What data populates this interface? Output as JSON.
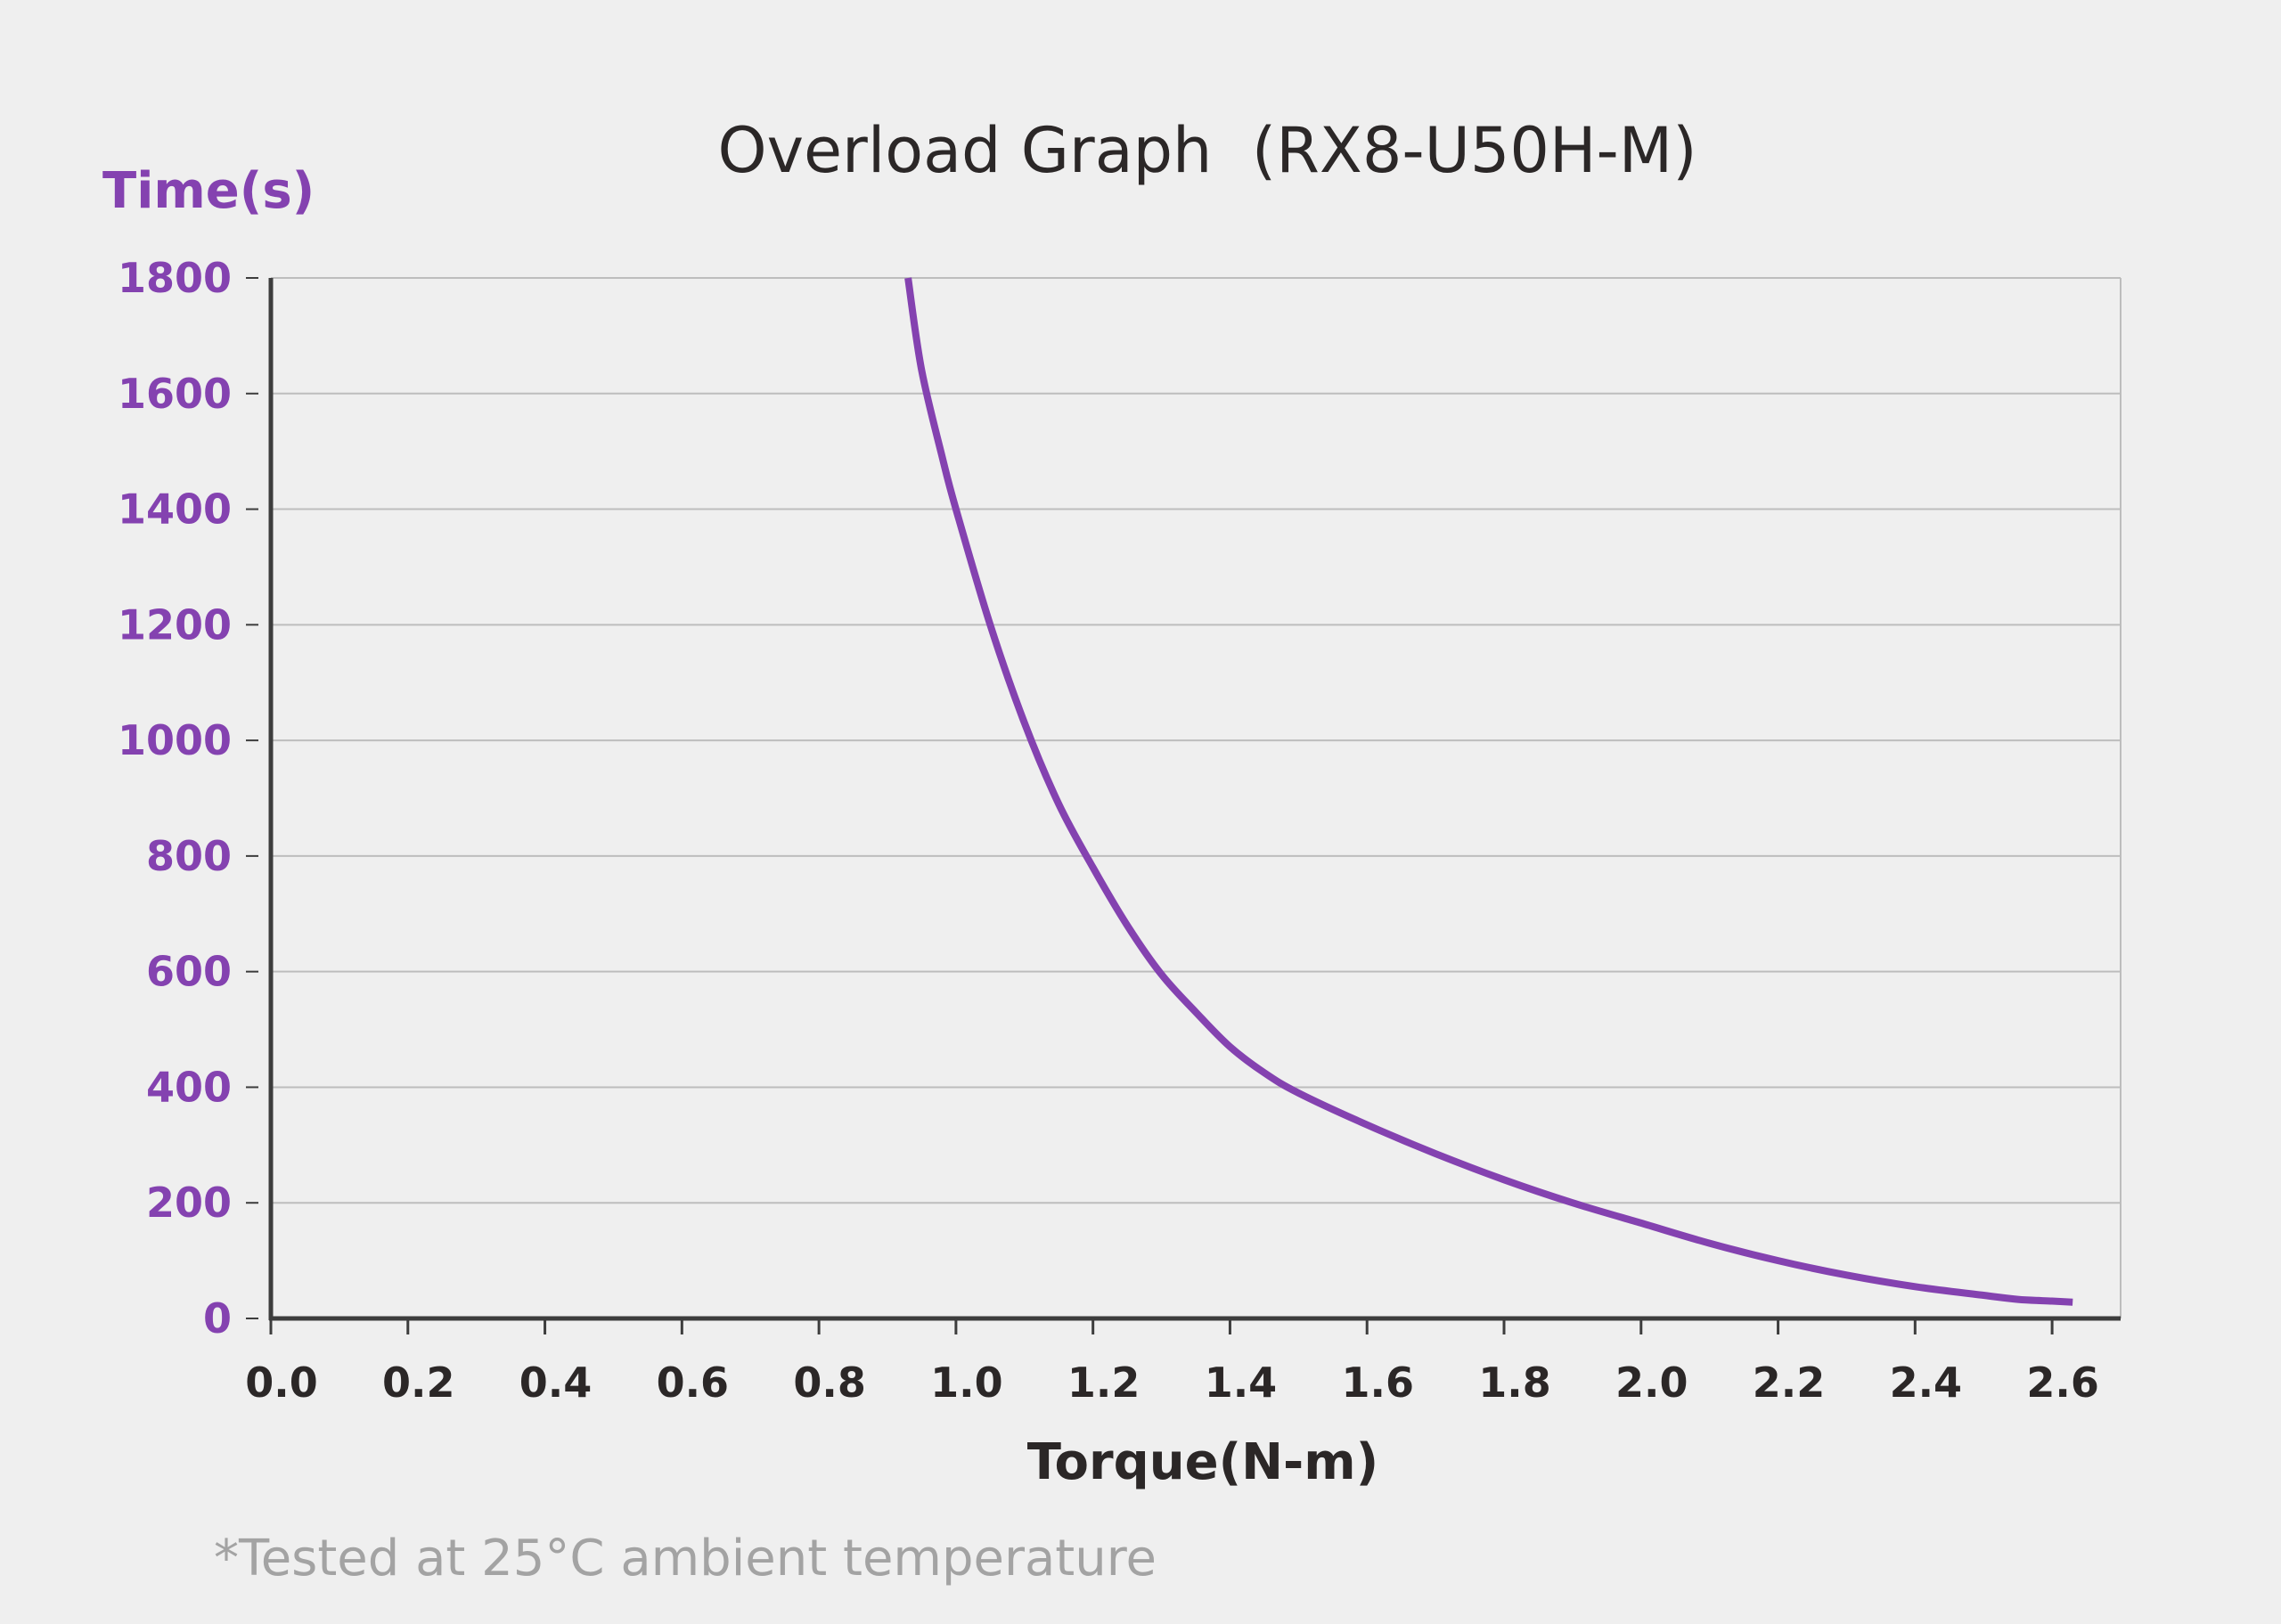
{
  "chart_data": {
    "type": "line",
    "title": "Overload Graph  (RX8-U50H-M)",
    "xlabel": "Torque(N-m)",
    "ylabel": "Time(s)",
    "xlim": [
      0.0,
      2.7
    ],
    "ylim": [
      0,
      1800
    ],
    "x_ticks": [
      "0.0",
      "0.2",
      "0.4",
      "0.6",
      "0.8",
      "1.0",
      "1.2",
      "1.4",
      "1.6",
      "1.8",
      "2.0",
      "2.2",
      "2.4",
      "2.6"
    ],
    "y_ticks": [
      "0",
      "200",
      "400",
      "600",
      "800",
      "1000",
      "1200",
      "1400",
      "1600",
      "1800"
    ],
    "grid": "horizontal",
    "footnote": "*Tested at 25°C ambient temperature",
    "series": [
      {
        "x": [
          0.93,
          0.95,
          0.98,
          1.0,
          1.05,
          1.1,
          1.15,
          1.2,
          1.25,
          1.3,
          1.35,
          1.4,
          1.45,
          1.5,
          1.6,
          1.7,
          1.8,
          1.9,
          2.0,
          2.1,
          2.2,
          2.3,
          2.4,
          2.5,
          2.55,
          2.6,
          2.63
        ],
        "y": [
          1800,
          1640,
          1490,
          1400,
          1200,
          1030,
          890,
          780,
          680,
          595,
          530,
          470,
          425,
          390,
          335,
          285,
          240,
          200,
          165,
          130,
          100,
          75,
          55,
          40,
          33,
          30,
          28
        ],
        "color": "#8442b0"
      }
    ],
    "colors": {
      "accent": "#8442b0",
      "axis": "#3d3d3d",
      "grid": "#bdbdbd",
      "text": "#2b2727",
      "footnote": "#a3a3a3",
      "background": "#efefef"
    }
  }
}
